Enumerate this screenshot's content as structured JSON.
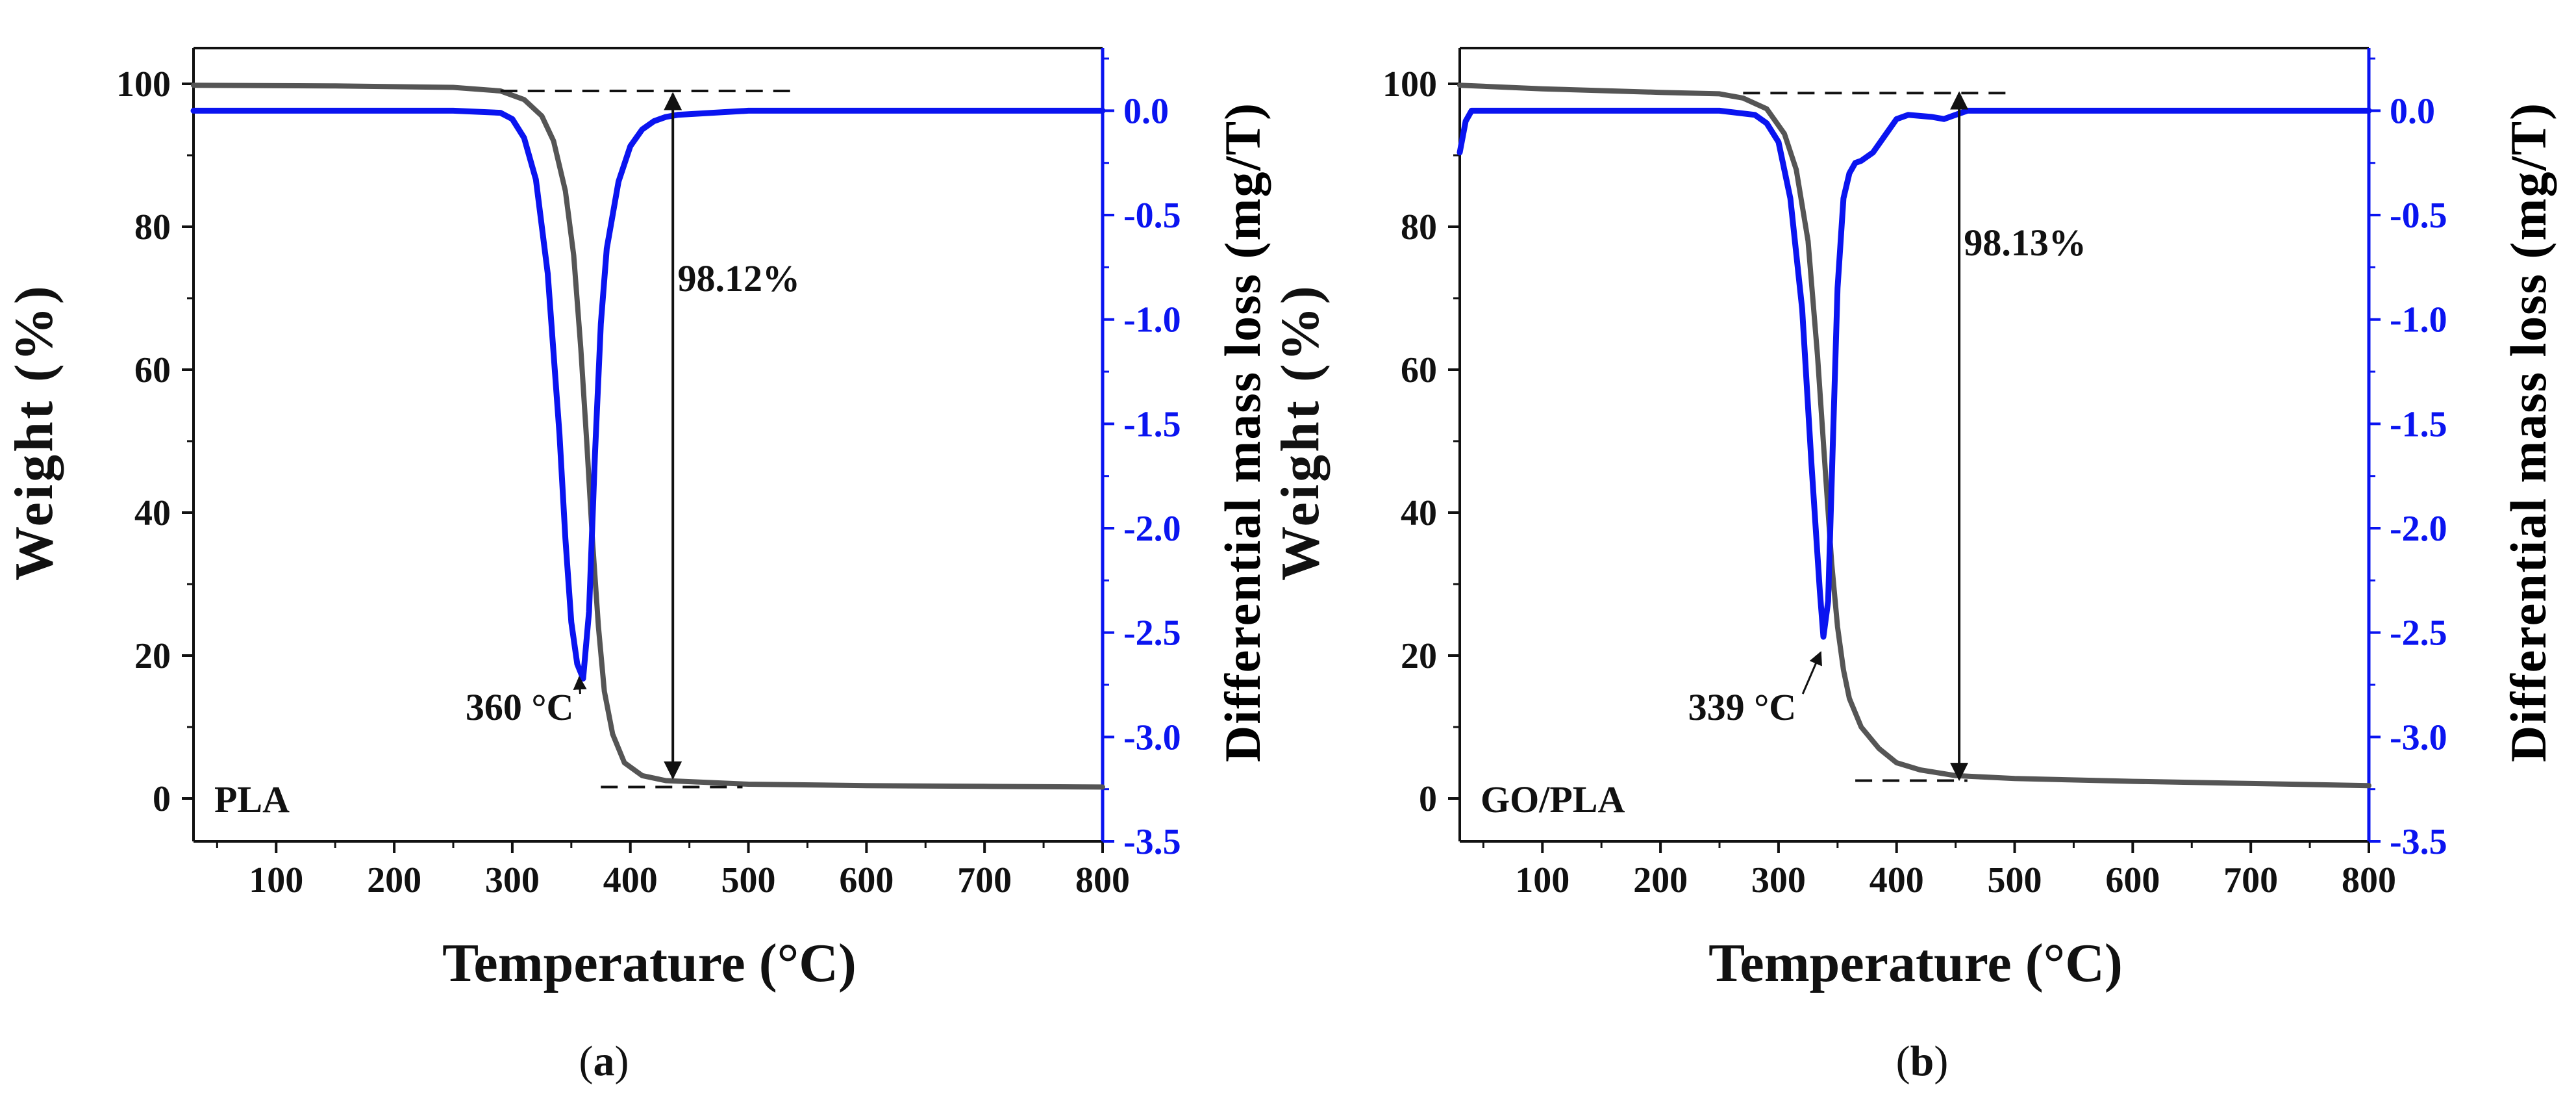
{
  "figure": {
    "panels": [
      {
        "caption_prefix": "(",
        "caption_letter": "a",
        "caption_suffix": ")",
        "label": "PLA"
      },
      {
        "caption_prefix": "(",
        "caption_letter": "b",
        "caption_suffix": ")",
        "label": "GO/PLA"
      }
    ],
    "colors": {
      "weight": "#555555",
      "dtg": "#0a14f0",
      "axis": "#111111",
      "annotation": "#111111"
    }
  },
  "chart_data": [
    {
      "type": "line",
      "title": "",
      "panel_label": "PLA",
      "xlabel": "Temperature (°C)",
      "ylabel": "Weight (%)",
      "y2label": "Differential mass loss (mg/T)",
      "xlim": [
        30,
        800
      ],
      "ylim": [
        -6,
        105
      ],
      "y2lim": [
        -3.5,
        0.3
      ],
      "xticks": [
        100,
        200,
        300,
        400,
        500,
        600,
        700,
        800
      ],
      "yticks": [
        0,
        20,
        40,
        60,
        80,
        100
      ],
      "y2ticks": [
        0.0,
        -0.5,
        -1.0,
        -1.5,
        -2.0,
        -2.5,
        -3.0,
        -3.5
      ],
      "y2tick_labels": [
        "0.0",
        "-0.5",
        "-1.0",
        "-1.5",
        "-2.0",
        "-2.5",
        "-3.0",
        "-3.5"
      ],
      "series": [
        {
          "name": "Weight",
          "axis": "left",
          "x": [
            30,
            150,
            250,
            290,
            310,
            325,
            335,
            345,
            352,
            358,
            363,
            368,
            373,
            378,
            385,
            395,
            410,
            430,
            500,
            600,
            700,
            800
          ],
          "y": [
            99.8,
            99.7,
            99.5,
            99.0,
            97.8,
            95.5,
            92.0,
            85.0,
            76.0,
            63.0,
            50.0,
            36.0,
            24.0,
            15.0,
            9.0,
            5.0,
            3.2,
            2.5,
            2.0,
            1.8,
            1.7,
            1.6
          ]
        },
        {
          "name": "Differential mass loss",
          "axis": "right",
          "x": [
            30,
            250,
            290,
            300,
            310,
            320,
            330,
            340,
            345,
            350,
            355,
            360,
            365,
            370,
            375,
            380,
            390,
            400,
            410,
            420,
            430,
            440,
            500,
            600,
            700,
            800
          ],
          "y": [
            0.0,
            0.0,
            -0.01,
            -0.04,
            -0.13,
            -0.33,
            -0.78,
            -1.55,
            -2.05,
            -2.45,
            -2.65,
            -2.72,
            -2.4,
            -1.65,
            -1.02,
            -0.66,
            -0.34,
            -0.17,
            -0.09,
            -0.05,
            -0.03,
            -0.02,
            0.0,
            0.0,
            0.0,
            0.0
          ]
        }
      ],
      "annotations": [
        {
          "text": "360 °C",
          "x": 352,
          "y": 11,
          "arrow_to": [
            360,
            17.5
          ]
        },
        {
          "text": "98.12%",
          "x": 440,
          "y": 71,
          "arrow": {
            "x": 436,
            "y_from": 98.6,
            "y_to": 2.9
          }
        },
        {
          "type": "dashed",
          "x_from": 290,
          "x_to": 540,
          "y": 99.0
        },
        {
          "type": "dashed",
          "x_from": 375,
          "x_to": 495,
          "y": 1.6
        }
      ]
    },
    {
      "type": "line",
      "title": "",
      "panel_label": "GO/PLA",
      "xlabel": "Temperature (°C)",
      "ylabel": "Weight (%)",
      "y2label": "Differential mass loss (mg/T)",
      "xlim": [
        30,
        800
      ],
      "ylim": [
        -6,
        105
      ],
      "y2lim": [
        -3.5,
        0.3
      ],
      "xticks": [
        100,
        200,
        300,
        400,
        500,
        600,
        700,
        800
      ],
      "yticks": [
        0,
        20,
        40,
        60,
        80,
        100
      ],
      "y2ticks": [
        0.0,
        -0.5,
        -1.0,
        -1.5,
        -2.0,
        -2.5,
        -3.0,
        -3.5
      ],
      "y2tick_labels": [
        "0.0",
        "-0.5",
        "-1.0",
        "-1.5",
        "-2.0",
        "-2.5",
        "-3.0",
        "-3.5"
      ],
      "series": [
        {
          "name": "Weight",
          "axis": "left",
          "x": [
            30,
            100,
            200,
            250,
            270,
            290,
            305,
            315,
            325,
            333,
            340,
            345,
            350,
            355,
            360,
            370,
            385,
            400,
            420,
            450,
            500,
            600,
            700,
            800
          ],
          "y": [
            99.8,
            99.3,
            98.8,
            98.6,
            98.0,
            96.5,
            93.0,
            88.0,
            78.0,
            62.0,
            45.0,
            33.0,
            24.0,
            18.0,
            14.0,
            10.0,
            7.0,
            5.0,
            4.0,
            3.2,
            2.8,
            2.4,
            2.1,
            1.8
          ],
          "_note": ""
        },
        {
          "name": "Differential mass loss",
          "axis": "right",
          "x": [
            30,
            35,
            40,
            50,
            250,
            280,
            290,
            300,
            310,
            320,
            328,
            335,
            338,
            342,
            346,
            350,
            355,
            360,
            365,
            370,
            380,
            390,
            400,
            410,
            430,
            440,
            450,
            460,
            500,
            600,
            700,
            800
          ],
          "y": [
            -0.2,
            -0.05,
            0.0,
            0.0,
            0.0,
            -0.02,
            -0.06,
            -0.15,
            -0.42,
            -0.95,
            -1.7,
            -2.3,
            -2.52,
            -2.35,
            -1.6,
            -0.85,
            -0.42,
            -0.3,
            -0.25,
            -0.24,
            -0.2,
            -0.12,
            -0.04,
            -0.02,
            -0.03,
            -0.04,
            -0.02,
            0.0,
            0.0,
            0.0,
            0.0,
            0.0
          ]
        }
      ],
      "annotations": [
        {
          "text": "339 °C",
          "x": 315,
          "y": 11,
          "arrow_to": [
            339,
            21
          ]
        },
        {
          "text": "98.13%",
          "x": 457,
          "y": 76,
          "arrow": {
            "x": 453,
            "y_from": 98.7,
            "y_to": 2.7
          }
        },
        {
          "type": "dashed",
          "x_from": 270,
          "x_to": 500,
          "y": 98.7
        },
        {
          "type": "dashed",
          "x_from": 365,
          "x_to": 460,
          "y": 2.5
        }
      ]
    }
  ]
}
